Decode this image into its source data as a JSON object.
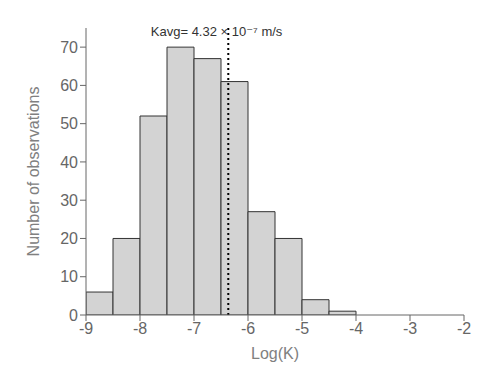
{
  "chart_data": {
    "type": "histogram",
    "bins": [
      -9.0,
      -8.5,
      -8.0,
      -7.5,
      -7.0,
      -6.5,
      -6.0,
      -5.5,
      -5.0,
      -4.5,
      -4.0,
      -3.5,
      -3.0
    ],
    "counts": [
      6,
      20,
      52,
      70,
      67,
      61,
      27,
      20,
      4,
      1,
      0,
      0
    ],
    "color": "#d3d3d3",
    "xlabel": "Log(K)",
    "ylabel": "Number of observations",
    "xlim": [
      -9,
      -2
    ],
    "ylim": [
      0,
      75
    ],
    "xticks": [
      -9,
      -8,
      -7,
      -6,
      -5,
      -4,
      -3,
      -2
    ],
    "yticks": [
      0,
      10,
      20,
      30,
      40,
      50,
      60,
      70
    ],
    "grid": false,
    "vlines": [
      {
        "x": -6.365,
        "color": "#000000",
        "line_style": "dotted"
      }
    ],
    "annotations": [
      {
        "text": "Kavg= 4.32 × 10⁻⁷ m/s",
        "x": -7.8,
        "y": 72
      }
    ]
  }
}
